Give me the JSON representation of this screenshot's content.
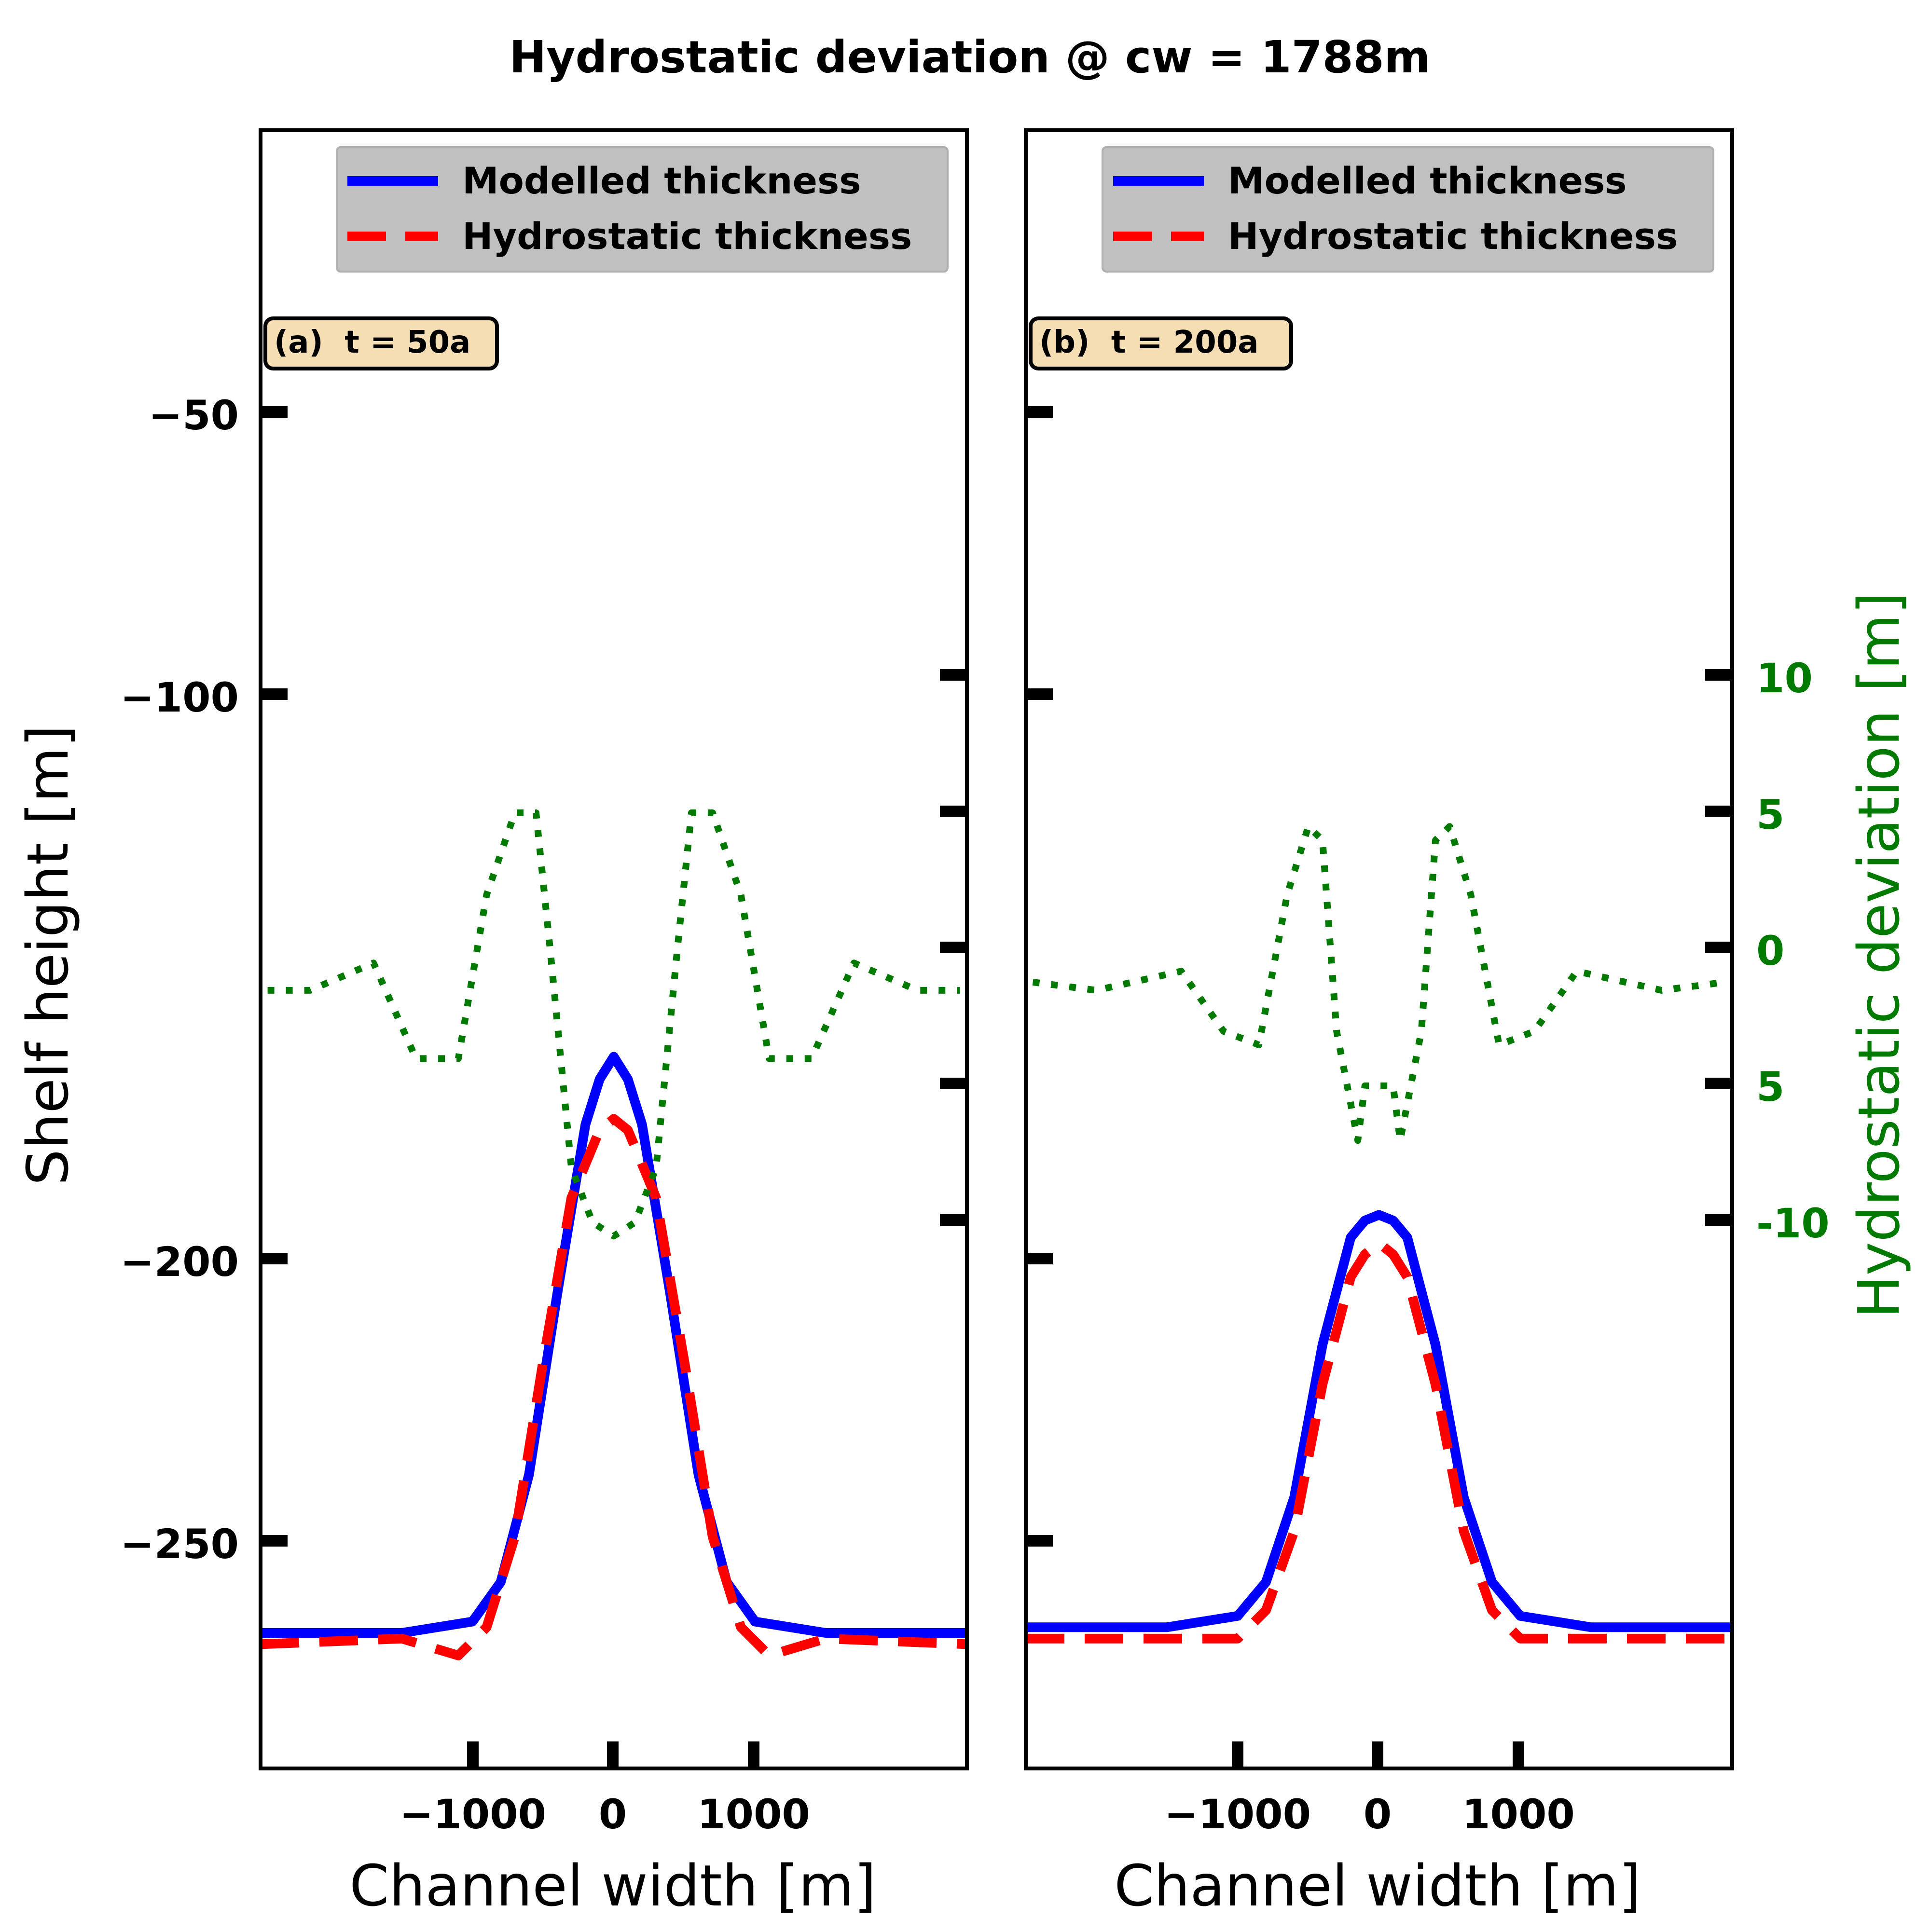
{
  "title": "Hydrostatic deviation @ cw = 1788m",
  "colors": {
    "modelled": "#0000ff",
    "hydrostatic": "#ff0000",
    "deviation": "#007a00",
    "legend_bg": "#c0c0c0",
    "panel_label_bg": "#f5deb3"
  },
  "legend": {
    "modelled_label": "Modelled thickness",
    "hydrostatic_label": "Hydrostatic thickness"
  },
  "xlabel": "Channel width [m]",
  "ylabel_left": "Shelf height [m]",
  "ylabel_right": "Hydrostatic deviation [m]",
  "xticks": [
    "−1000",
    "0",
    "1000"
  ],
  "yticks_left": [
    "−50",
    "−100",
    "−200",
    "−250"
  ],
  "yticks_right": [
    "10",
    "5",
    "0",
    "5",
    "-10"
  ],
  "chart_data": [
    {
      "panel_label": "(a)  t = 50a",
      "type": "line",
      "xlim": [
        -2500,
        2500
      ],
      "ylim": [
        -290,
        0
      ],
      "y2lim": [
        -30,
        30
      ],
      "grid": false,
      "legend_position": "top-right",
      "series": [
        {
          "name": "Modelled thickness",
          "axis": "left",
          "x": [
            -2500,
            -1500,
            -1000,
            -800,
            -600,
            -400,
            -200,
            -100,
            0,
            100,
            200,
            400,
            600,
            800,
            1000,
            1500,
            2500
          ],
          "y": [
            -266,
            -266,
            -264,
            -257,
            -238,
            -206,
            -176,
            -168,
            -164,
            -168,
            -176,
            -206,
            -238,
            -257,
            -264,
            -266,
            -266
          ]
        },
        {
          "name": "Hydrostatic thickness",
          "axis": "left",
          "x": [
            -2500,
            -1500,
            -1100,
            -900,
            -700,
            -500,
            -300,
            -100,
            0,
            100,
            300,
            500,
            700,
            900,
            1100,
            1500,
            2500
          ],
          "y": [
            -268,
            -267,
            -270,
            -265,
            -249,
            -218,
            -189,
            -177,
            -175,
            -177,
            -189,
            -218,
            -249,
            -265,
            -270,
            -267,
            -268
          ]
        },
        {
          "name": "Hydrostatic deviation",
          "axis": "right",
          "x": [
            -2450,
            -2150,
            -1700,
            -1400,
            -1100,
            -900,
            -700,
            -550,
            -450,
            -300,
            -150,
            0,
            150,
            300,
            450,
            550,
            700,
            900,
            1100,
            1400,
            1700,
            2150,
            2450
          ],
          "y": [
            -1.5,
            -1.5,
            -0.5,
            -4,
            -4,
            2,
            5,
            5,
            0,
            -8,
            -10,
            -10.5,
            -10,
            -8,
            0,
            5,
            5,
            2,
            -4,
            -4,
            -0.5,
            -1.5,
            -1.5
          ]
        }
      ]
    },
    {
      "panel_label": "(b)  t = 200a",
      "type": "line",
      "xlim": [
        -2500,
        2500
      ],
      "ylim": [
        -290,
        0
      ],
      "y2lim": [
        -30,
        30
      ],
      "grid": false,
      "legend_position": "top-right",
      "series": [
        {
          "name": "Modelled thickness",
          "axis": "left",
          "x": [
            -2500,
            -1500,
            -1000,
            -800,
            -600,
            -400,
            -200,
            -100,
            0,
            100,
            200,
            400,
            600,
            800,
            1000,
            1500,
            2500
          ],
          "y": [
            -265,
            -265,
            -263,
            -257,
            -242,
            -215,
            -196,
            -193,
            -192,
            -193,
            -196,
            -215,
            -242,
            -257,
            -263,
            -265,
            -265
          ]
        },
        {
          "name": "Hydrostatic thickness",
          "axis": "left",
          "x": [
            -2500,
            -1500,
            -1000,
            -800,
            -600,
            -400,
            -200,
            -100,
            0,
            100,
            200,
            400,
            600,
            800,
            1000,
            1500,
            2500
          ],
          "y": [
            -267,
            -267,
            -267,
            -262,
            -248,
            -222,
            -203,
            -199,
            -197,
            -199,
            -203,
            -222,
            -248,
            -262,
            -267,
            -267,
            -267
          ]
        },
        {
          "name": "Hydrostatic deviation",
          "axis": "right",
          "x": [
            -2450,
            -2000,
            -1400,
            -1100,
            -850,
            -650,
            -500,
            -400,
            -300,
            -150,
            -100,
            0,
            100,
            150,
            300,
            400,
            500,
            650,
            850,
            1100,
            1400,
            2000,
            2450
          ],
          "y": [
            -1.2,
            -1.5,
            -0.8,
            -3,
            -3.5,
            2,
            4.5,
            4,
            -3,
            -7,
            -5,
            -5,
            -5,
            -7,
            -3,
            4,
            4.5,
            2,
            -3.5,
            -3,
            -0.8,
            -1.5,
            -1.2
          ]
        }
      ]
    }
  ]
}
